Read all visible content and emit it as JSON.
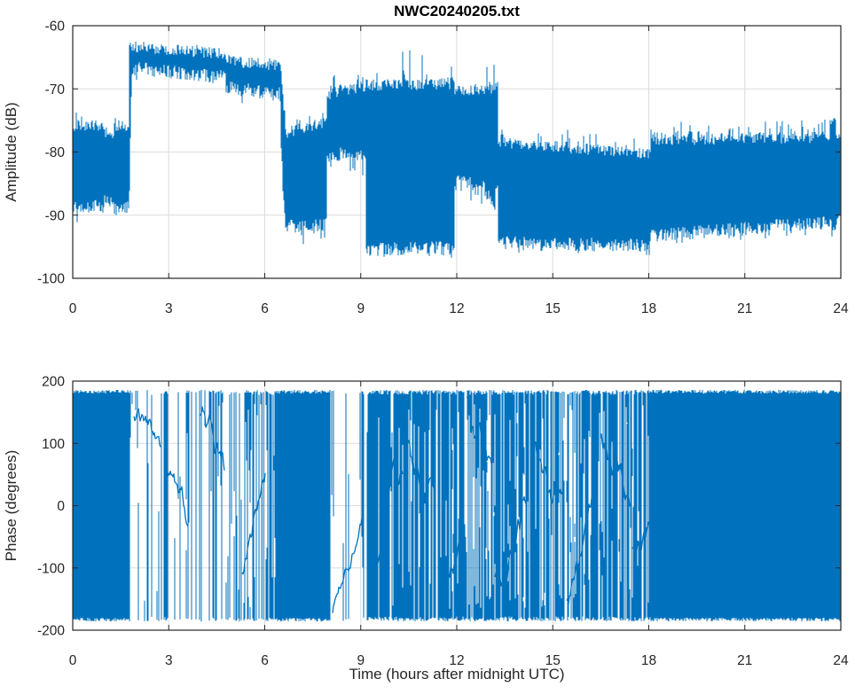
{
  "figure": {
    "background": "#ffffff",
    "axis_color": "#262626",
    "grid_color": "#dcdcdc"
  },
  "chart_data": [
    {
      "type": "line",
      "title": "NWC20240205.txt",
      "xlabel": "",
      "ylabel": "Amplitude (dB)",
      "xlim": [
        0,
        24
      ],
      "ylim": [
        -100,
        -60
      ],
      "xticks": [
        0,
        3,
        6,
        9,
        12,
        15,
        18,
        21,
        24
      ],
      "yticks": [
        -100,
        -90,
        -80,
        -70,
        -60
      ],
      "grid": true,
      "legend": null,
      "line_color": "#0072BD",
      "series_kind": "noisy-amplitude-envelope",
      "envelope_segments": [
        {
          "t": [
            0.0,
            0.95
          ],
          "top": [
            -75.8,
            -75.9
          ],
          "bot": [
            -88.6,
            -88.6
          ],
          "up": [
            0.1,
            1.6
          ],
          "dn": [
            0.12,
            2.2
          ]
        },
        {
          "t": [
            0.95,
            1.3
          ],
          "top": [
            -77.0,
            -77.0
          ],
          "bot": [
            -87.7,
            -87.7
          ],
          "up": [
            0.08,
            1.4
          ],
          "dn": [
            0.1,
            1.8
          ]
        },
        {
          "t": [
            1.3,
            1.76
          ],
          "top": [
            -75.8,
            -75.8
          ],
          "bot": [
            -88.9,
            -88.9
          ],
          "up": [
            0.1,
            1.6
          ],
          "dn": [
            0.12,
            2.4
          ]
        },
        {
          "t": [
            1.76,
            1.84
          ],
          "top": [
            -63.6,
            -63.4
          ],
          "bot": [
            -89.5,
            -68.5
          ],
          "up": [
            0.0,
            0.0
          ],
          "dn": [
            0.0,
            0.0
          ]
        },
        {
          "t": [
            1.84,
            4.78
          ],
          "top": [
            -63.3,
            -64.5
          ],
          "bot": [
            -66.7,
            -68.2
          ],
          "up": [
            0.05,
            0.6
          ],
          "dn": [
            0.05,
            2.0
          ]
        },
        {
          "t": [
            4.78,
            6.5
          ],
          "top": [
            -65.5,
            -66.3
          ],
          "bot": [
            -69.8,
            -70.9
          ],
          "up": [
            0.05,
            0.7
          ],
          "dn": [
            0.06,
            2.0
          ]
        },
        {
          "t": [
            6.5,
            6.64
          ],
          "top": [
            -67.0,
            -75.0
          ],
          "bot": [
            -78.0,
            -91.0
          ],
          "up": [
            0.0,
            0.0
          ],
          "dn": [
            0.3,
            1.5
          ]
        },
        {
          "t": [
            6.64,
            7.95
          ],
          "top": [
            -77.0,
            -75.2
          ],
          "bot": [
            -91.8,
            -91.5
          ],
          "up": [
            0.18,
            2.8
          ],
          "dn": [
            0.1,
            2.2
          ]
        },
        {
          "t": [
            7.95,
            9.16
          ],
          "top": [
            -70.8,
            -69.6
          ],
          "bot": [
            -80.4,
            -80.2
          ],
          "up": [
            0.22,
            3.0
          ],
          "dn": [
            0.15,
            3.6
          ]
        },
        {
          "t": [
            9.16,
            11.93
          ],
          "top": [
            -69.4,
            -69.2
          ],
          "bot": [
            -95.4,
            -95.2
          ],
          "up": [
            0.14,
            2.6
          ],
          "dn": [
            0.1,
            1.2
          ]
        },
        {
          "t": [
            11.93,
            13.3
          ],
          "top": [
            -70.3,
            -69.8
          ],
          "bot": [
            -84.0,
            -86.5
          ],
          "up": [
            0.08,
            2.2
          ],
          "dn": [
            0.3,
            3.5
          ]
        },
        {
          "t": [
            13.3,
            18.06
          ],
          "top": [
            -78.4,
            -80.4
          ],
          "bot": [
            -94.4,
            -94.8
          ],
          "up": [
            0.2,
            2.6
          ],
          "dn": [
            0.12,
            1.4
          ]
        },
        {
          "t": [
            18.06,
            24.01
          ],
          "top": [
            -78.1,
            -77.6
          ],
          "bot": [
            -93.2,
            -91.0
          ],
          "up": [
            0.26,
            2.4
          ],
          "dn": [
            0.1,
            1.3
          ]
        }
      ],
      "spike_windows": [
        {
          "t": [
            10.25,
            10.92
          ],
          "p": 0.1,
          "amp": 5.8
        },
        {
          "t": [
            12.8,
            13.26
          ],
          "p": 0.1,
          "amp": 4.8
        },
        {
          "t": [
            11.3,
            11.9
          ],
          "p": 0.05,
          "amp": 3.0
        },
        {
          "t": [
            8.25,
            9.1
          ],
          "p": 0.1,
          "amp": 2.0
        },
        {
          "t": [
            4.7,
            4.85
          ],
          "p": 0.2,
          "amp": 0.0
        },
        {
          "t": [
            23.7,
            24.01
          ],
          "p": 0.15,
          "amp": 3.5
        }
      ]
    },
    {
      "type": "line",
      "title": "",
      "xlabel": "Time (hours after midnight UTC)",
      "ylabel": "Phase (degrees)",
      "xlim": [
        0,
        24
      ],
      "ylim": [
        -200,
        200
      ],
      "xticks": [
        0,
        3,
        6,
        9,
        12,
        15,
        18,
        21,
        24
      ],
      "yticks": [
        -200,
        -100,
        0,
        100,
        200
      ],
      "grid": true,
      "legend": null,
      "line_color": "#0072BD",
      "series_kind": "wrapped-phase",
      "phase_range": [
        -186,
        186
      ],
      "phase_segments": [
        {
          "t": [
            0.0,
            1.79
          ],
          "mode": "solid",
          "density": 1.0
        },
        {
          "t": [
            1.79,
            2.9
          ],
          "mode": "lines",
          "density": 0.1
        },
        {
          "t": [
            2.9,
            4.2
          ],
          "mode": "lines",
          "density": 0.13
        },
        {
          "t": [
            4.2,
            5.3
          ],
          "mode": "lines",
          "density": 0.2
        },
        {
          "t": [
            5.3,
            6.0
          ],
          "mode": "lines",
          "density": 0.34
        },
        {
          "t": [
            6.0,
            6.32
          ],
          "mode": "lines",
          "density": 0.55
        },
        {
          "t": [
            6.32,
            8.06
          ],
          "mode": "solid",
          "density": 1.0
        },
        {
          "t": [
            8.06,
            9.2
          ],
          "mode": "lines",
          "density": 0.11
        },
        {
          "t": [
            9.2,
            11.3
          ],
          "mode": "lines",
          "density": 0.72
        },
        {
          "t": [
            11.3,
            12.7
          ],
          "mode": "lines",
          "density": 0.52
        },
        {
          "t": [
            12.7,
            14.6
          ],
          "mode": "lines",
          "density": 0.66
        },
        {
          "t": [
            14.6,
            16.4
          ],
          "mode": "lines",
          "density": 0.52
        },
        {
          "t": [
            16.4,
            18.08
          ],
          "mode": "lines",
          "density": 0.6
        },
        {
          "t": [
            18.08,
            24.01
          ],
          "mode": "solid",
          "density": 1.0
        }
      ],
      "wanderers": [
        {
          "t": [
            1.9,
            2.75
          ],
          "start": 140,
          "drift": -6,
          "vol": 22
        },
        {
          "t": [
            2.95,
            3.6
          ],
          "start": 60,
          "drift": -8,
          "vol": 26
        },
        {
          "t": [
            4.0,
            4.75
          ],
          "start": 160,
          "drift": -9,
          "vol": 30
        },
        {
          "t": [
            5.3,
            6.0
          ],
          "start": -120,
          "drift": 7,
          "vol": 26
        },
        {
          "t": [
            8.12,
            9.05
          ],
          "start": -172,
          "drift": 9,
          "vol": 14
        },
        {
          "t": [
            9.3,
            10.3
          ],
          "start": -150,
          "drift": 7,
          "vol": 30
        },
        {
          "t": [
            10.4,
            11.3
          ],
          "start": 110,
          "drift": -8,
          "vol": 30
        },
        {
          "t": [
            11.45,
            12.2
          ],
          "start": -160,
          "drift": 10,
          "vol": 26
        },
        {
          "t": [
            12.3,
            13.1
          ],
          "start": 170,
          "drift": -9,
          "vol": 28
        },
        {
          "t": [
            13.2,
            14.2
          ],
          "start": -120,
          "drift": 7,
          "vol": 30
        },
        {
          "t": [
            14.3,
            15.3
          ],
          "start": 140,
          "drift": -7,
          "vol": 30
        },
        {
          "t": [
            15.45,
            16.35
          ],
          "start": -150,
          "drift": 8,
          "vol": 28
        },
        {
          "t": [
            16.5,
            17.4
          ],
          "start": 120,
          "drift": -8,
          "vol": 28
        },
        {
          "t": [
            17.5,
            18.05
          ],
          "start": -80,
          "drift": 9,
          "vol": 26
        }
      ]
    }
  ]
}
